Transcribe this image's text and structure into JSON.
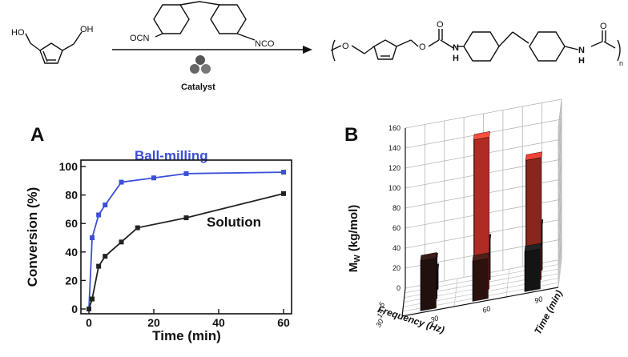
{
  "scheme": {
    "reactant_oh_left": "HO",
    "reactant_oh_right": "OH",
    "reagent_nco_left": "OCN",
    "reagent_nco_right": "NCO",
    "catalyst_label": "Catalyst",
    "product_o1": "O",
    "product_o2": "O",
    "product_carbonyl_o1": "O",
    "product_n1": "N",
    "product_h1": "H",
    "product_n2": "N",
    "product_h2": "H",
    "product_carbonyl_o2": "O",
    "product_subscript": "n"
  },
  "chart_data": [
    {
      "panel": "A",
      "type": "line",
      "xlabel": "Time (min)",
      "ylabel": "Conversion (%)",
      "xlim": [
        0,
        60
      ],
      "ylim": [
        0,
        100
      ],
      "x_ticks": [
        "0",
        "20",
        "40",
        "60"
      ],
      "y_ticks": [
        "0",
        "20",
        "40",
        "60",
        "80",
        "100"
      ],
      "series": [
        {
          "name": "Ball-milling",
          "color": "#3b4fd8",
          "x": [
            0,
            1,
            3,
            5,
            10,
            20,
            30,
            60
          ],
          "y": [
            0,
            50,
            66,
            73,
            89,
            92,
            95,
            96
          ]
        },
        {
          "name": "Solution",
          "color": "#222222",
          "x": [
            0,
            1,
            3,
            5,
            10,
            15,
            30,
            60
          ],
          "y": [
            0,
            7,
            30,
            37,
            47,
            57,
            64,
            81
          ]
        }
      ]
    },
    {
      "panel": "B",
      "type": "bar3d",
      "zlabel": "Mw (kg/mol)",
      "zlabel_main": "M",
      "zlabel_sub": "W",
      "zlabel_rest": " (kg/mol)",
      "xlabel": "Frequency (Hz)",
      "ylabel": "Time (min)",
      "zlim": [
        0,
        160
      ],
      "z_ticks": [
        "0",
        "20",
        "40",
        "60",
        "80",
        "100",
        "120",
        "140",
        "160"
      ],
      "frequency_ticks": [
        "5",
        "15",
        "30"
      ],
      "time_ticks": [
        "30",
        "60",
        "90"
      ],
      "bars": [
        {
          "frequency": "5",
          "time": "30",
          "value": 20,
          "color": "#1a1a1a"
        },
        {
          "frequency": "15",
          "time": "30",
          "value": 40,
          "color": "#1a1a1a"
        },
        {
          "frequency": "30",
          "time": "30",
          "value": 50,
          "color": "#2b1612"
        },
        {
          "frequency": "5",
          "time": "60",
          "value": 40,
          "color": "#1a1a1a"
        },
        {
          "frequency": "15",
          "time": "60",
          "value": 152,
          "color": "#e83a2e"
        },
        {
          "frequency": "30",
          "time": "60",
          "value": 40,
          "color": "#3a1814"
        },
        {
          "frequency": "5",
          "time": "90",
          "value": 45,
          "color": "#1a1a1a"
        },
        {
          "frequency": "15",
          "time": "90",
          "value": 122,
          "color": "#b53127"
        },
        {
          "frequency": "30",
          "time": "90",
          "value": 40,
          "color": "#1a1a1a"
        }
      ]
    }
  ]
}
